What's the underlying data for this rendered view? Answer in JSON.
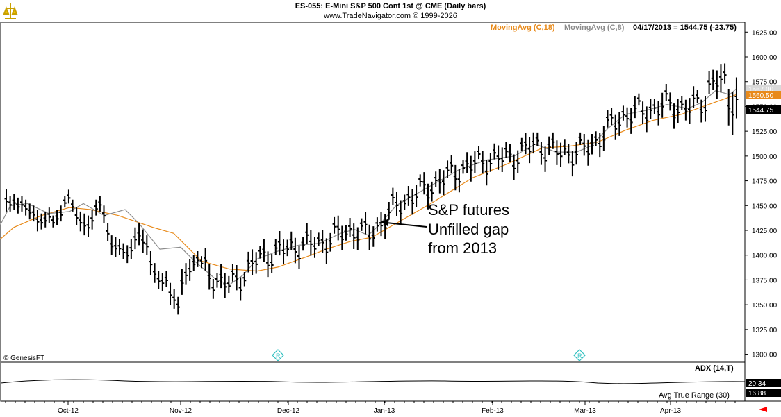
{
  "header": {
    "title": "ES-055:  E-Mini S&P 500 Cont 1st @ CME  (Daily bars)",
    "copyright": "www.TradeNavigator.com © 1999-2026"
  },
  "legend": {
    "ma18_label": "MovingAvg (C,18)",
    "ma8_label": "MovingAvg (C,8)",
    "last_label": "04/17/2013 = 1544.75 (-23.75)",
    "ma18_color": "#E88A1A",
    "ma8_color": "#8C8C8C"
  },
  "price_tags": {
    "ma8_value": "1567.00",
    "ma18_value": "1560.50",
    "last_value": "1544.75"
  },
  "annotation": {
    "line1": "S&P futures",
    "line2": "Unfilled gap",
    "line3": "from 2013"
  },
  "watermark": "© GenesisFT",
  "event_marker_icon": "r-diamond-icon",
  "lower_panel": {
    "adx_label": "ADX (14,T)",
    "atr_label": "Avg True Range (30)",
    "adx_value": "20.34",
    "atr_value": "16.88"
  },
  "chart_data": {
    "type": "ohlc",
    "title": "ES-055:  E-Mini S&P 500 Cont 1st @ CME  (Daily bars)",
    "y_ticks": [
      1625,
      1600,
      1575,
      1550,
      1525,
      1500,
      1475,
      1450,
      1425,
      1400,
      1375,
      1350,
      1325,
      1300
    ],
    "ylim": [
      1292,
      1635
    ],
    "x_labels": [
      "Oct-12",
      "Nov-12",
      "Dec-12",
      "Jan-13",
      "Feb-13",
      "Mar-13",
      "Apr-13"
    ],
    "grid": false,
    "series": [
      {
        "name": "MovingAvg (C,18)",
        "color": "#E88A1A",
        "points": [
          [
            0,
            1416
          ],
          [
            20,
            1428
          ],
          [
            60,
            1440
          ],
          [
            100,
            1448
          ],
          [
            130,
            1446
          ],
          [
            170,
            1440
          ],
          [
            220,
            1428
          ],
          [
            250,
            1422
          ],
          [
            290,
            1394
          ],
          [
            330,
            1386
          ],
          [
            370,
            1384
          ],
          [
            400,
            1388
          ],
          [
            440,
            1398
          ],
          [
            470,
            1406
          ],
          [
            505,
            1414
          ],
          [
            535,
            1418
          ],
          [
            570,
            1432
          ],
          [
            620,
            1452
          ],
          [
            680,
            1478
          ],
          [
            730,
            1492
          ],
          [
            780,
            1508
          ],
          [
            820,
            1510
          ],
          [
            860,
            1514
          ],
          [
            900,
            1526
          ],
          [
            940,
            1536
          ],
          [
            980,
            1542
          ],
          [
            1020,
            1552
          ],
          [
            1060,
            1562
          ]
        ]
      },
      {
        "name": "MovingAvg (C,8)",
        "color": "#8C8C8C",
        "points": [
          [
            0,
            1430
          ],
          [
            15,
            1450
          ],
          [
            40,
            1452
          ],
          [
            70,
            1442
          ],
          [
            100,
            1444
          ],
          [
            120,
            1452
          ],
          [
            150,
            1440
          ],
          [
            180,
            1446
          ],
          [
            200,
            1432
          ],
          [
            230,
            1406
          ],
          [
            260,
            1408
          ],
          [
            280,
            1394
          ],
          [
            310,
            1376
          ],
          [
            330,
            1370
          ],
          [
            350,
            1380
          ],
          [
            370,
            1396
          ],
          [
            400,
            1404
          ],
          [
            430,
            1410
          ],
          [
            460,
            1412
          ],
          [
            490,
            1422
          ],
          [
            510,
            1426
          ],
          [
            530,
            1420
          ],
          [
            545,
            1430
          ],
          [
            570,
            1450
          ],
          [
            600,
            1462
          ],
          [
            630,
            1474
          ],
          [
            660,
            1486
          ],
          [
            700,
            1496
          ],
          [
            740,
            1500
          ],
          [
            770,
            1512
          ],
          [
            800,
            1504
          ],
          [
            830,
            1504
          ],
          [
            850,
            1510
          ],
          [
            875,
            1528
          ],
          [
            900,
            1542
          ],
          [
            930,
            1546
          ],
          [
            960,
            1552
          ],
          [
            990,
            1548
          ],
          [
            1010,
            1554
          ],
          [
            1030,
            1566
          ],
          [
            1050,
            1562
          ],
          [
            1060,
            1568
          ]
        ]
      }
    ],
    "ohlc_bars": {
      "first_bar_x": 9,
      "bar_step": 5.62,
      "highs_lows": [
        [
          1467,
          1444
        ],
        [
          1460,
          1444
        ],
        [
          1462,
          1446
        ],
        [
          1458,
          1442
        ],
        [
          1460,
          1444
        ],
        [
          1456,
          1440
        ],
        [
          1452,
          1436
        ],
        [
          1450,
          1434
        ],
        [
          1446,
          1424
        ],
        [
          1442,
          1426
        ],
        [
          1444,
          1428
        ],
        [
          1448,
          1432
        ],
        [
          1440,
          1428
        ],
        [
          1446,
          1430
        ],
        [
          1450,
          1434
        ],
        [
          1460,
          1448
        ],
        [
          1466,
          1452
        ],
        [
          1456,
          1444
        ],
        [
          1448,
          1430
        ],
        [
          1444,
          1424
        ],
        [
          1442,
          1420
        ],
        [
          1440,
          1418
        ],
        [
          1446,
          1426
        ],
        [
          1456,
          1440
        ],
        [
          1460,
          1444
        ],
        [
          1450,
          1432
        ],
        [
          1432,
          1414
        ],
        [
          1420,
          1400
        ],
        [
          1418,
          1398
        ],
        [
          1416,
          1400
        ],
        [
          1412,
          1396
        ],
        [
          1410,
          1392
        ],
        [
          1416,
          1396
        ],
        [
          1428,
          1406
        ],
        [
          1432,
          1410
        ],
        [
          1426,
          1402
        ],
        [
          1420,
          1400
        ],
        [
          1404,
          1380
        ],
        [
          1392,
          1372
        ],
        [
          1384,
          1366
        ],
        [
          1382,
          1364
        ],
        [
          1384,
          1368
        ],
        [
          1372,
          1350
        ],
        [
          1366,
          1346
        ],
        [
          1358,
          1340
        ],
        [
          1386,
          1360
        ],
        [
          1392,
          1370
        ],
        [
          1396,
          1374
        ],
        [
          1400,
          1384
        ],
        [
          1404,
          1388
        ]
      ]
    }
  }
}
